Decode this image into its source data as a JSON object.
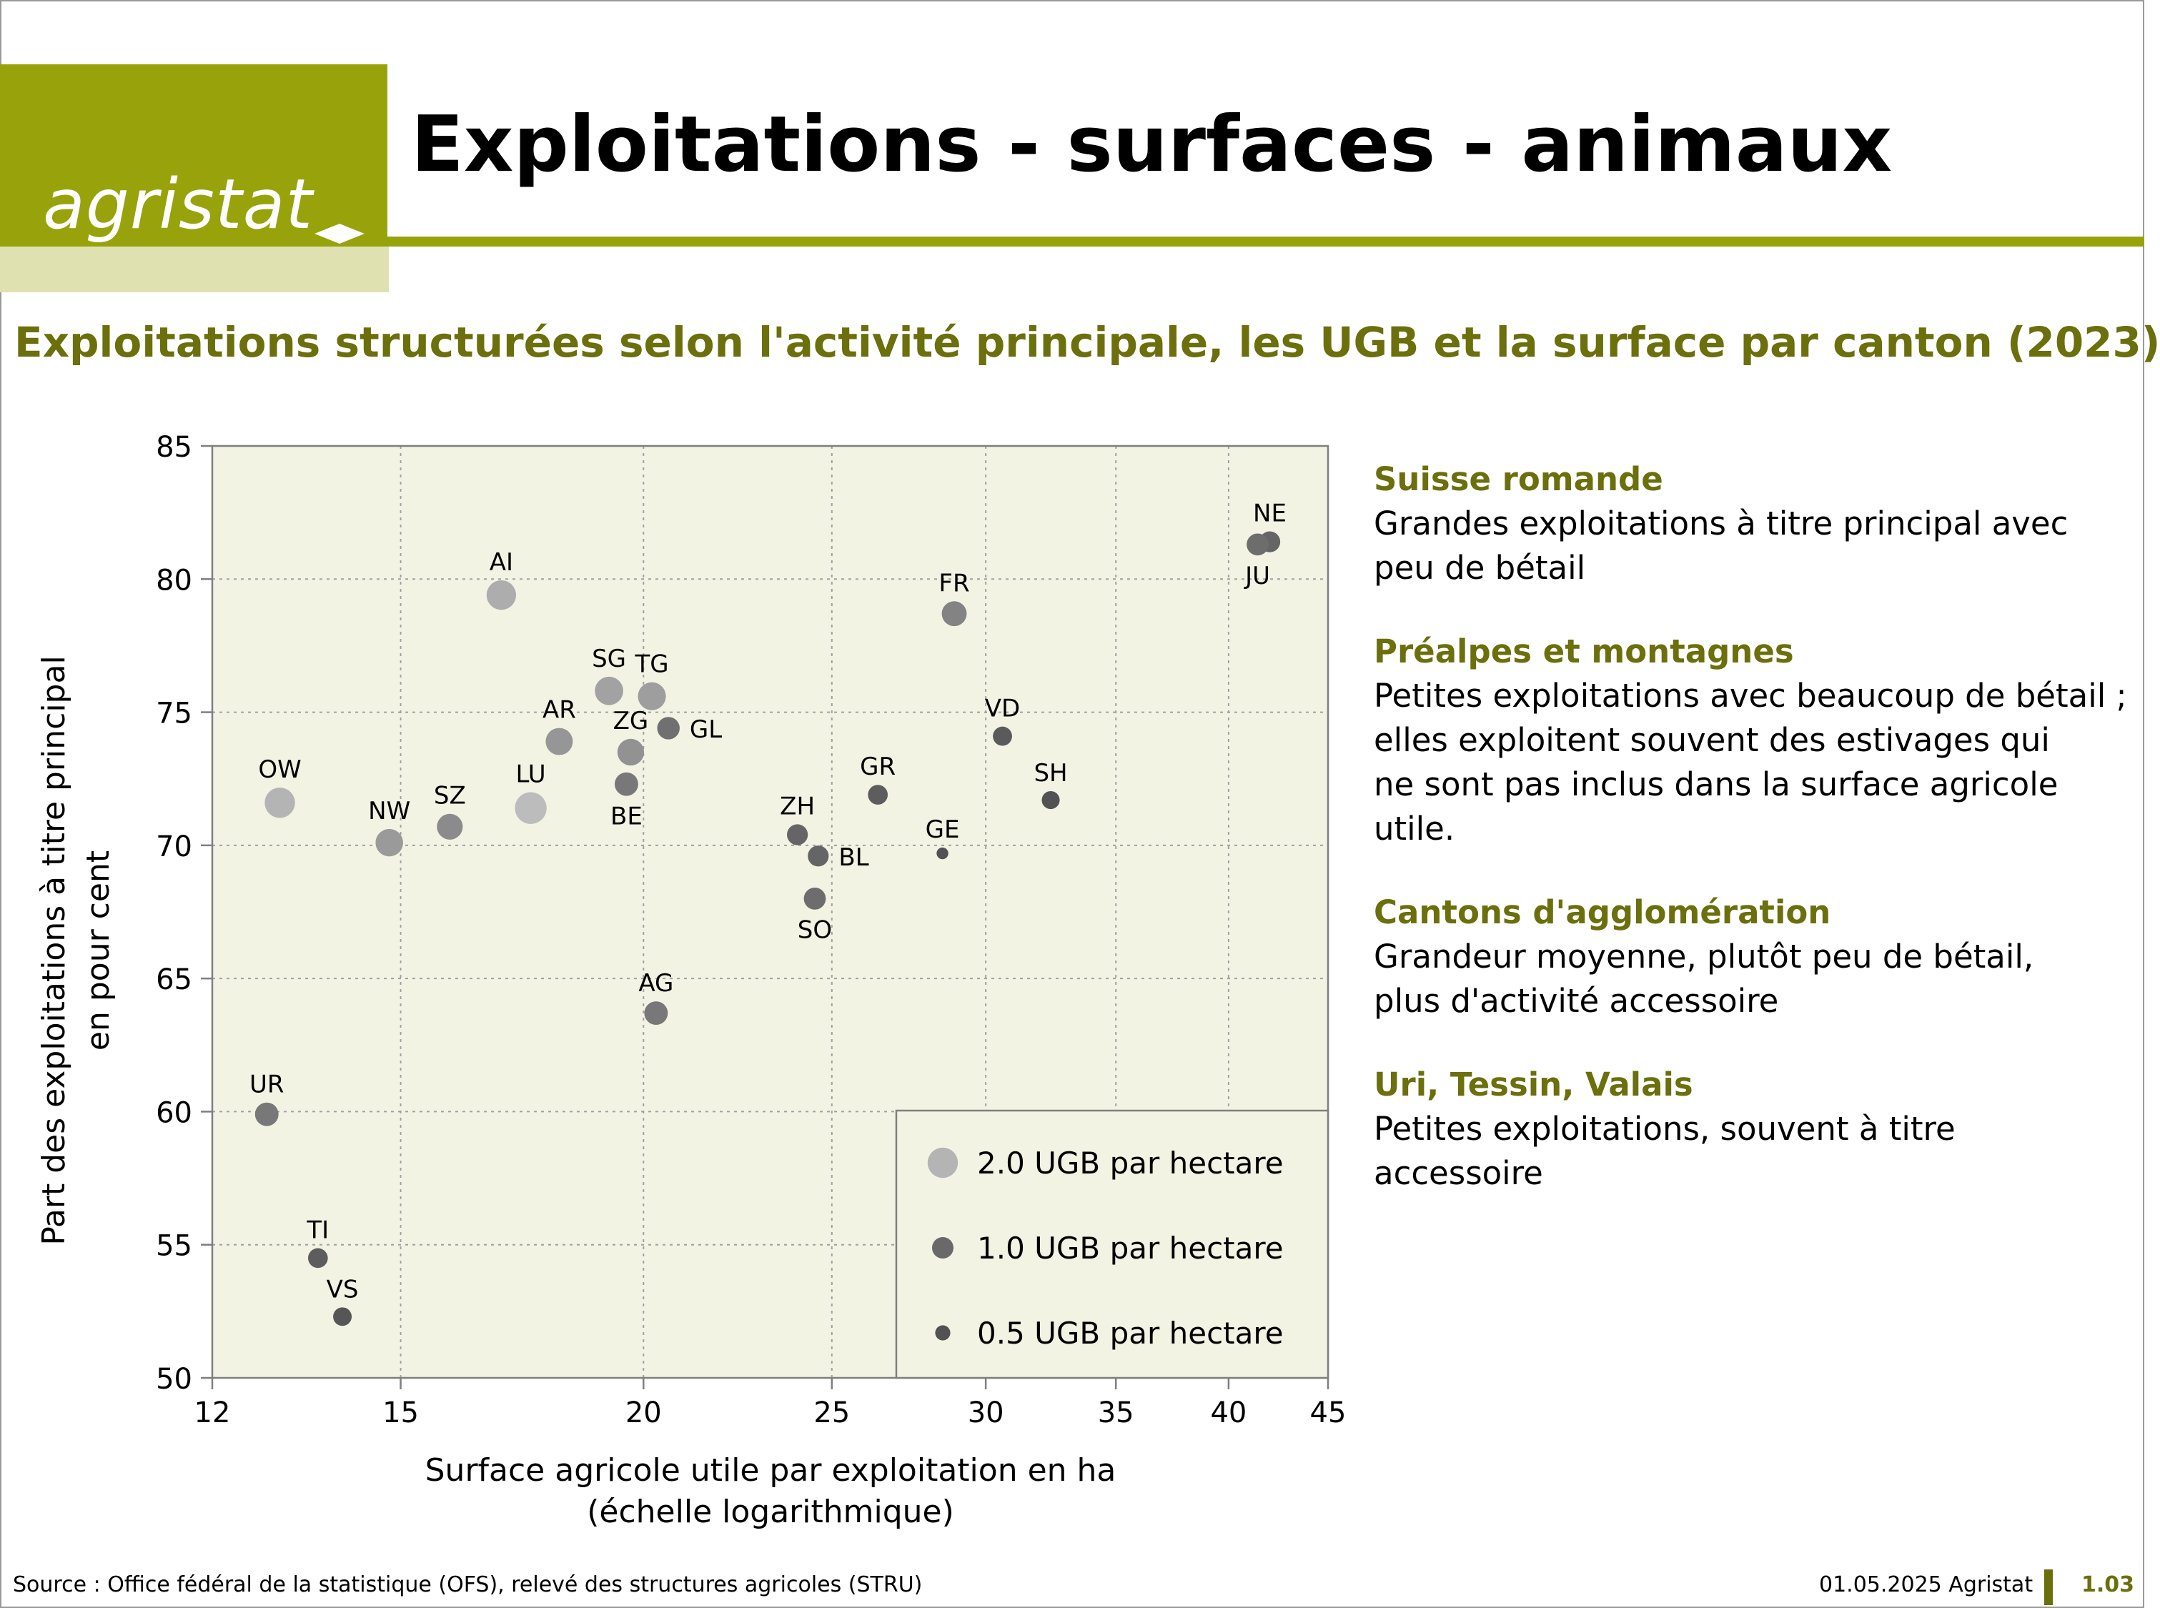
{
  "header": {
    "logo_text": "agristat",
    "title": "Exploitations - surfaces - animaux",
    "subtitle": "Exploitations structurées selon l'activité principale, les UGB et la surface par canton (2023)"
  },
  "colors": {
    "brand": "#98a30c",
    "brand_dark": "#6b6f0c",
    "brand_pale": "#dfe2b0",
    "plot_bg": "#f3f3e4",
    "grid": "#a0a0a0"
  },
  "chart_data": {
    "type": "scatter",
    "xlabel": "Surface agricole utile par exploitation en ha",
    "xlabel2": "(échelle logarithmique)",
    "ylabel": "Part des exploitations à titre principal",
    "ylabel2": "en pour cent",
    "x_scale": "log",
    "xlim": [
      12,
      45
    ],
    "ylim": [
      50,
      85
    ],
    "x_ticks": [
      12,
      15,
      20,
      25,
      30,
      35,
      40,
      45
    ],
    "y_ticks": [
      50,
      55,
      60,
      65,
      70,
      75,
      80,
      85
    ],
    "grid": true,
    "size_legend": [
      {
        "label": "2.0 UGB par hectare",
        "ugb": 2.0
      },
      {
        "label": "1.0 UGB par hectare",
        "ugb": 1.0
      },
      {
        "label": "0.5 UGB par hectare",
        "ugb": 0.5
      }
    ],
    "points": [
      {
        "label": "NE",
        "x": 42.0,
        "y": 81.4,
        "ugb": 0.95,
        "label_pos": "above"
      },
      {
        "label": "JU",
        "x": 41.4,
        "y": 81.3,
        "ugb": 1.05,
        "label_pos": "below"
      },
      {
        "label": "AI",
        "x": 16.9,
        "y": 79.4,
        "ugb": 1.9,
        "label_pos": "above"
      },
      {
        "label": "FR",
        "x": 28.9,
        "y": 78.7,
        "ugb": 1.35,
        "label_pos": "above"
      },
      {
        "label": "SG",
        "x": 19.2,
        "y": 75.8,
        "ugb": 1.75,
        "label_pos": "above"
      },
      {
        "label": "TG",
        "x": 20.2,
        "y": 75.6,
        "ugb": 1.7,
        "label_pos": "above"
      },
      {
        "label": "AR",
        "x": 18.1,
        "y": 73.9,
        "ugb": 1.6,
        "label_pos": "above"
      },
      {
        "label": "ZG",
        "x": 19.7,
        "y": 73.5,
        "ugb": 1.55,
        "label_pos": "above"
      },
      {
        "label": "GL",
        "x": 20.6,
        "y": 74.4,
        "ugb": 1.1,
        "label_pos": "right"
      },
      {
        "label": "VD",
        "x": 30.6,
        "y": 74.1,
        "ugb": 0.8,
        "label_pos": "above"
      },
      {
        "label": "BE",
        "x": 19.6,
        "y": 72.3,
        "ugb": 1.2,
        "label_pos": "below"
      },
      {
        "label": "GR",
        "x": 26.4,
        "y": 71.9,
        "ugb": 0.85,
        "label_pos": "above"
      },
      {
        "label": "SH",
        "x": 32.4,
        "y": 71.7,
        "ugb": 0.7,
        "label_pos": "above"
      },
      {
        "label": "OW",
        "x": 13.0,
        "y": 71.6,
        "ugb": 2.0,
        "label_pos": "above"
      },
      {
        "label": "LU",
        "x": 17.5,
        "y": 71.4,
        "ugb": 2.2,
        "label_pos": "above"
      },
      {
        "label": "SZ",
        "x": 15.9,
        "y": 70.7,
        "ugb": 1.45,
        "label_pos": "above"
      },
      {
        "label": "NW",
        "x": 14.8,
        "y": 70.1,
        "ugb": 1.65,
        "label_pos": "above"
      },
      {
        "label": "ZH",
        "x": 24.0,
        "y": 70.4,
        "ugb": 0.95,
        "label_pos": "above"
      },
      {
        "label": "GE",
        "x": 28.5,
        "y": 69.7,
        "ugb": 0.3,
        "label_pos": "above"
      },
      {
        "label": "BL",
        "x": 24.6,
        "y": 69.6,
        "ugb": 0.95,
        "label_pos": "right"
      },
      {
        "label": "SO",
        "x": 24.5,
        "y": 68.0,
        "ugb": 1.05,
        "label_pos": "below"
      },
      {
        "label": "AG",
        "x": 20.3,
        "y": 63.7,
        "ugb": 1.2,
        "label_pos": "above"
      },
      {
        "label": "UR",
        "x": 12.8,
        "y": 59.9,
        "ugb": 1.2,
        "label_pos": "above"
      },
      {
        "label": "TI",
        "x": 13.6,
        "y": 54.5,
        "ugb": 0.85,
        "label_pos": "above"
      },
      {
        "label": "VS",
        "x": 14.0,
        "y": 52.3,
        "ugb": 0.75,
        "label_pos": "above"
      }
    ]
  },
  "sidebar": {
    "groups": [
      {
        "title": "Suisse romande",
        "text": "Grandes exploitations à titre principal avec\npeu de bétail"
      },
      {
        "title": "Préalpes et montagnes",
        "text": "Petites exploitations avec beaucoup de bétail ;\nelles exploitent souvent des estivages qui\nne sont pas inclus dans la surface agricole utile."
      },
      {
        "title": "Cantons d'agglomération",
        "text": "Grandeur moyenne, plutôt peu de bétail,\nplus d'activité accessoire"
      },
      {
        "title": "Uri, Tessin, Valais",
        "text": "Petites exploitations, souvent à titre\naccessoire"
      }
    ]
  },
  "footer": {
    "source": "Source : Office fédéral de la statistique (OFS), relevé des structures agricoles (STRU)",
    "date": "01.05.2025 Agristat",
    "page_number": "1.03"
  }
}
